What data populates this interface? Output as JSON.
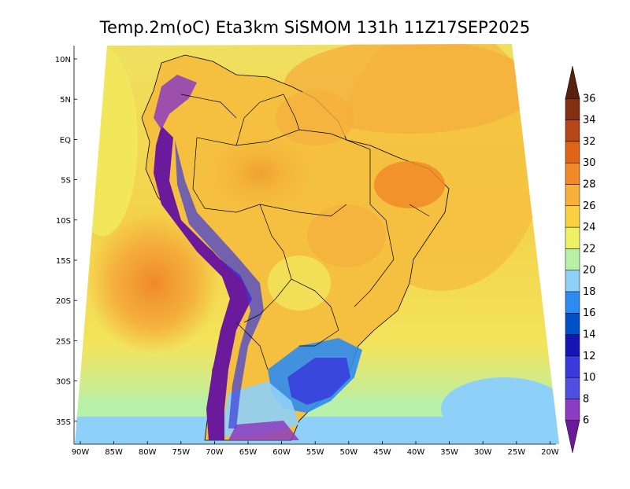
{
  "title": "Temp.2m(oC) Eta3km SiSMOM 131h 11Z17SEP2025",
  "lat_labels": [
    "10N",
    "5N",
    "EQ",
    "5S",
    "10S",
    "15S",
    "20S",
    "25S",
    "30S",
    "35S"
  ],
  "lon_labels": [
    "90W",
    "85W",
    "80W",
    "75W",
    "70W",
    "65W",
    "60W",
    "55W",
    "50W",
    "45W",
    "40W",
    "35W",
    "30W",
    "25W",
    "20W"
  ],
  "colorbar": {
    "labels": [
      "6",
      "8",
      "10",
      "12",
      "14",
      "16",
      "18",
      "20",
      "22",
      "24",
      "26",
      "28",
      "30",
      "32",
      "34",
      "36"
    ],
    "colors": [
      "#6a1a9a",
      "#8c3cc0",
      "#5050e0",
      "#3a3adc",
      "#1515b4",
      "#0050c8",
      "#2d8cf0",
      "#8fd0f8",
      "#b8f0a8",
      "#f0f064",
      "#f8d040",
      "#f8b03c",
      "#f08a28",
      "#e06418",
      "#b4461a",
      "#823014",
      "#5a200e"
    ],
    "unit_hint": "oC"
  },
  "map": {
    "region": "South America",
    "field": "2 m air temperature",
    "colors": {
      "ocean_warm": "#f5c63f",
      "ocean_mid": "#f0e85a",
      "ocean_cool": "#8fd0f8",
      "land_hot": "#f08a28",
      "land_warm": "#f5b93c",
      "andes_cold": "#6a1a9a",
      "andes_cool": "#3a3adc",
      "south_cool": "#2d8cf0",
      "borders": "#000000"
    }
  }
}
